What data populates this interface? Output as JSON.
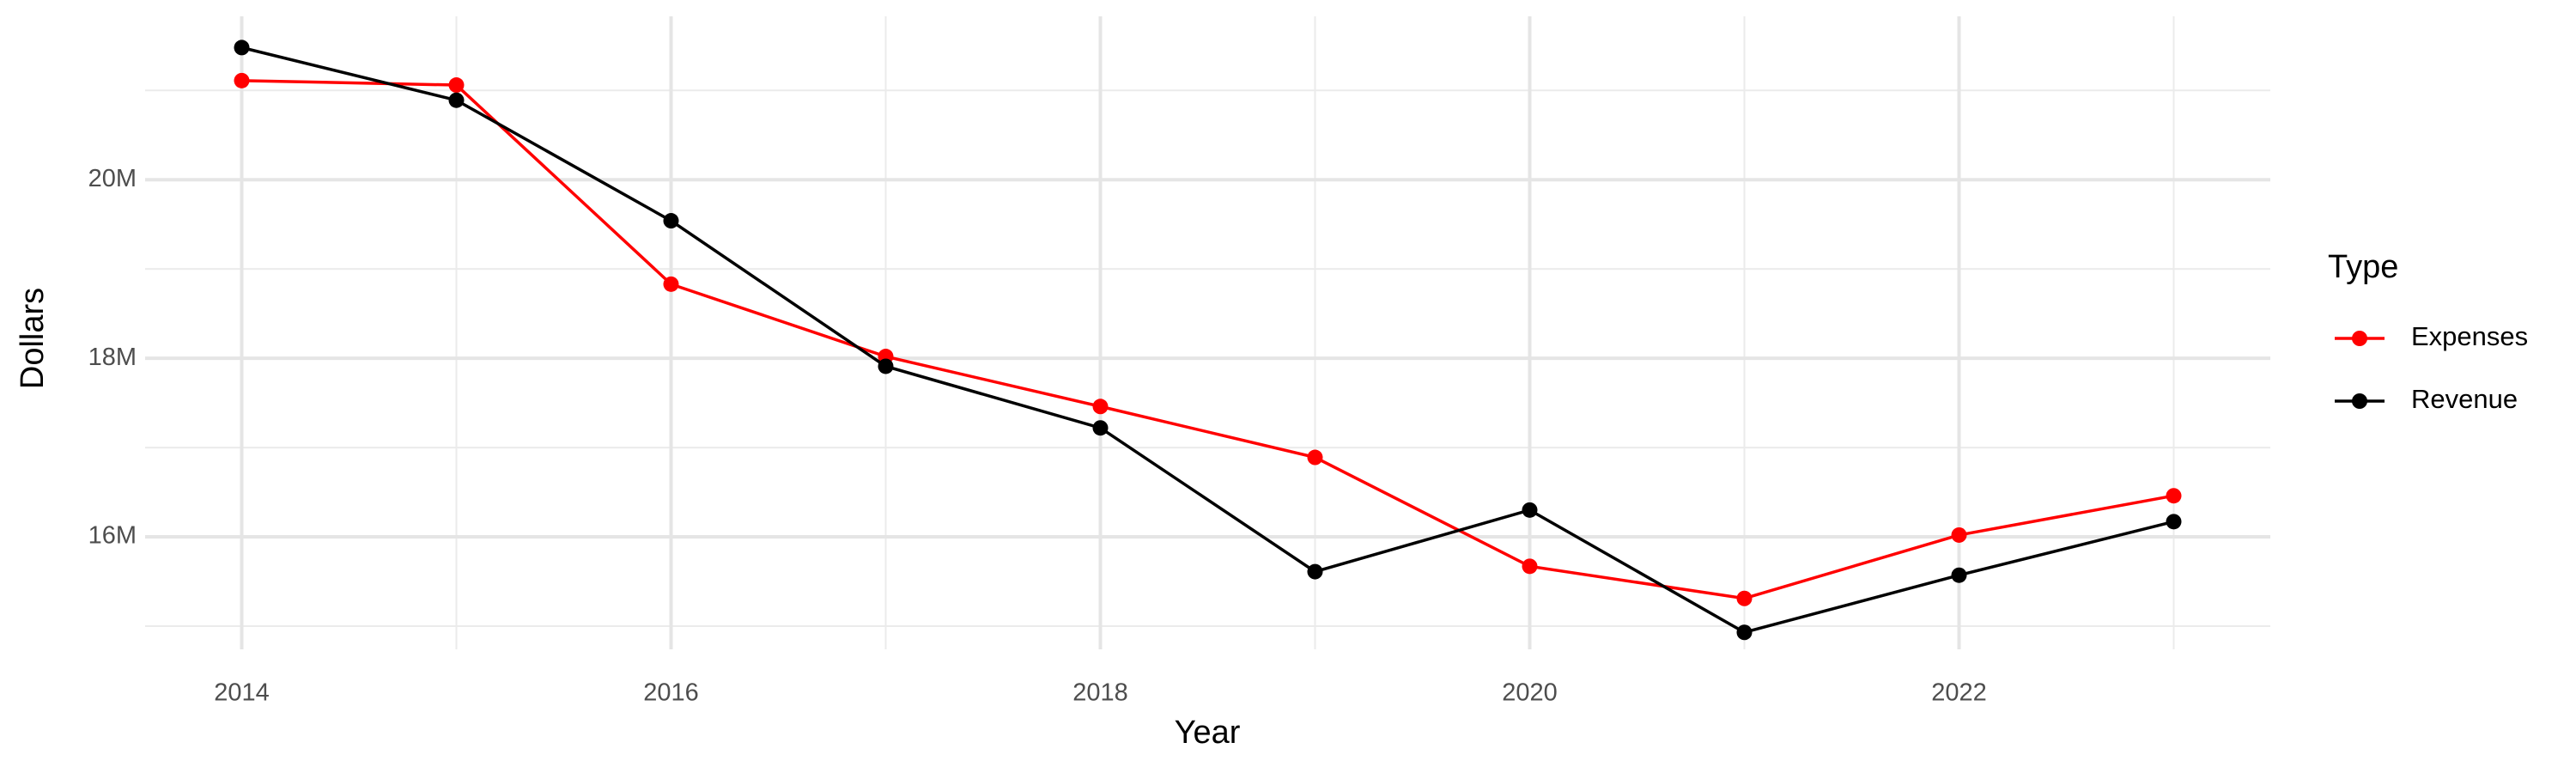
{
  "chart_data": {
    "type": "line",
    "x_label": "Year",
    "y_label": "Dollars",
    "legend_title": "Type",
    "x": [
      2014,
      2015,
      2016,
      2017,
      2018,
      2019,
      2020,
      2021,
      2022,
      2023
    ],
    "series": [
      {
        "name": "Expenses",
        "color": "#ff0000",
        "values": [
          21110000,
          21060000,
          18830000,
          18020000,
          17460000,
          16890000,
          15670000,
          15310000,
          16020000,
          16460000
        ]
      },
      {
        "name": "Revenue",
        "color": "#000000",
        "values": [
          21480000,
          20890000,
          19540000,
          17910000,
          17220000,
          15610000,
          16300000,
          14930000,
          15570000,
          16170000
        ]
      }
    ],
    "xlim": [
      2013.55,
      2023.45
    ],
    "xticks": [
      2014,
      2016,
      2018,
      2020,
      2022
    ],
    "ylim": [
      14740000,
      21830000
    ],
    "yticks": [
      {
        "value": 16000000,
        "label": "16M"
      },
      {
        "value": 18000000,
        "label": "18M"
      },
      {
        "value": 20000000,
        "label": "20M"
      }
    ],
    "grid": true,
    "legend_position": "right"
  }
}
